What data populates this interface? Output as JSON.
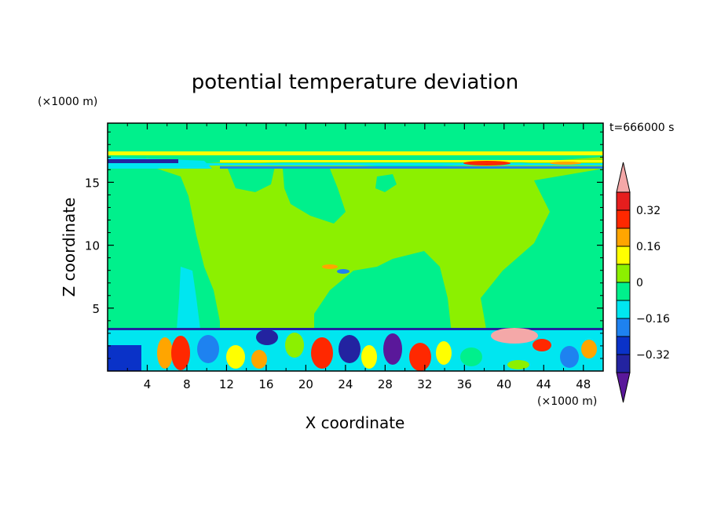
{
  "chart_data": {
    "type": "heatmap",
    "title": "potential temperature deviation",
    "xlabel": "X coordinate",
    "ylabel": "Z coordinate",
    "x_unit": "(×1000 m)",
    "y_unit": "(×1000 m)",
    "time_label": "t=666000 s",
    "xlim": [
      0,
      50
    ],
    "ylim": [
      0,
      19.7
    ],
    "x_ticks": [
      4,
      8,
      12,
      16,
      20,
      24,
      28,
      32,
      36,
      40,
      44,
      48
    ],
    "y_ticks": [
      5,
      10,
      15
    ],
    "x_tick_labels": [
      "4",
      "8",
      "12",
      "16",
      "20",
      "24",
      "28",
      "32",
      "36",
      "40",
      "44",
      "48"
    ],
    "y_tick_labels": [
      "5",
      "10",
      "15"
    ],
    "colorbar": {
      "levels": [
        -0.4,
        -0.32,
        -0.24,
        -0.16,
        -0.08,
        0,
        0.08,
        0.16,
        0.24,
        0.32,
        0.4
      ],
      "labels": [
        "0.32",
        "0.16",
        "0",
        "−0.16",
        "−0.32"
      ],
      "label_values": [
        0.32,
        0.16,
        0,
        -0.16,
        -0.32
      ],
      "colors": [
        "#5a189a",
        "#2323a0",
        "#0a32c8",
        "#1e82f0",
        "#00e6f0",
        "#00f08c",
        "#8cf000",
        "#ffff00",
        "#ffa500",
        "#ff2800",
        "#e61e1e",
        "#f4a8a8"
      ],
      "extend": "both"
    },
    "regions": {
      "background_band": "#8cf000",
      "negative_patch": "#00f08c",
      "upper_layer_positive": "#ffff00",
      "boundary_layer_mixed": true
    },
    "grid": false
  }
}
